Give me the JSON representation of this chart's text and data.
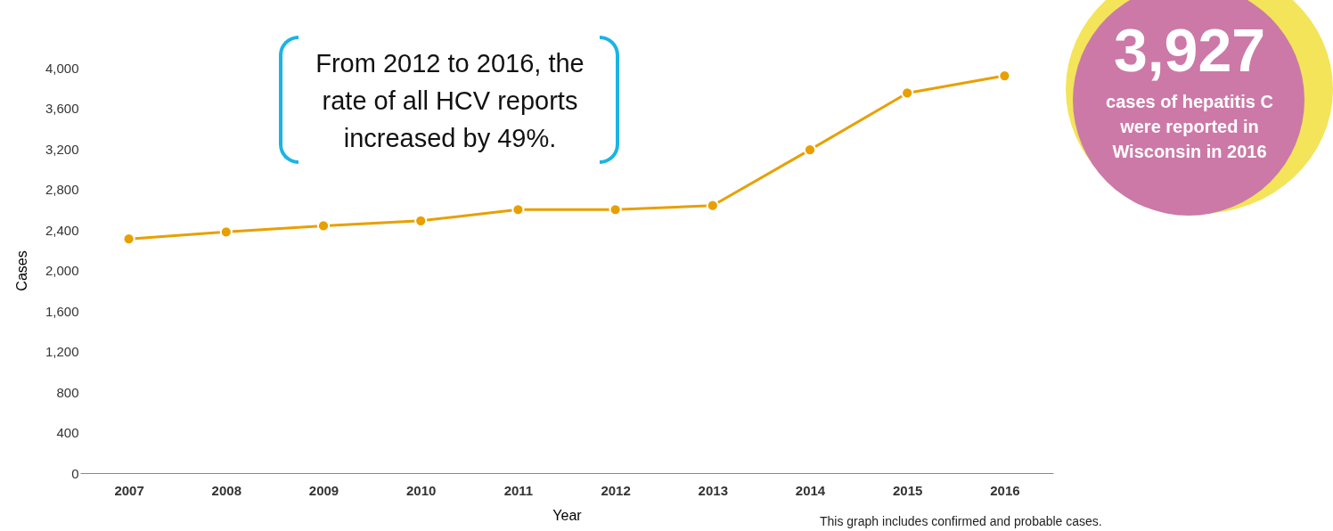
{
  "chart_data": {
    "type": "line",
    "xlabel": "Year",
    "ylabel": "Cases",
    "categories": [
      "2007",
      "2008",
      "2009",
      "2010",
      "2011",
      "2012",
      "2013",
      "2014",
      "2015",
      "2016"
    ],
    "series": [
      {
        "color": "#e8a000",
        "values": [
          2310,
          2380,
          2440,
          2490,
          2600,
          2600,
          2640,
          3190,
          3750,
          3920
        ]
      }
    ],
    "ylim": [
      0,
      4000
    ],
    "yticks": [
      0,
      400,
      800,
      {
        "value": 1200,
        "label": "1,200"
      },
      {
        "value": 1600,
        "label": "1,600"
      },
      {
        "value": 2000,
        "label": "2,000"
      },
      {
        "value": 2400,
        "label": "2,400"
      },
      {
        "value": 2800,
        "label": "2,800"
      },
      {
        "value": 3200,
        "label": "3,200"
      },
      {
        "value": 3600,
        "label": "3,600"
      },
      {
        "value": 4000,
        "label": "4,000"
      }
    ],
    "grid": false,
    "legend": false,
    "marker": "circle",
    "line_style": "solid",
    "annotations": [
      "From 2012 to 2016, the rate of all HCV reports increased by 49%.",
      "3,927",
      "cases of hepatitis C were reported in Wisconsin in 2016",
      "This graph includes confirmed and probable cases."
    ]
  }
}
